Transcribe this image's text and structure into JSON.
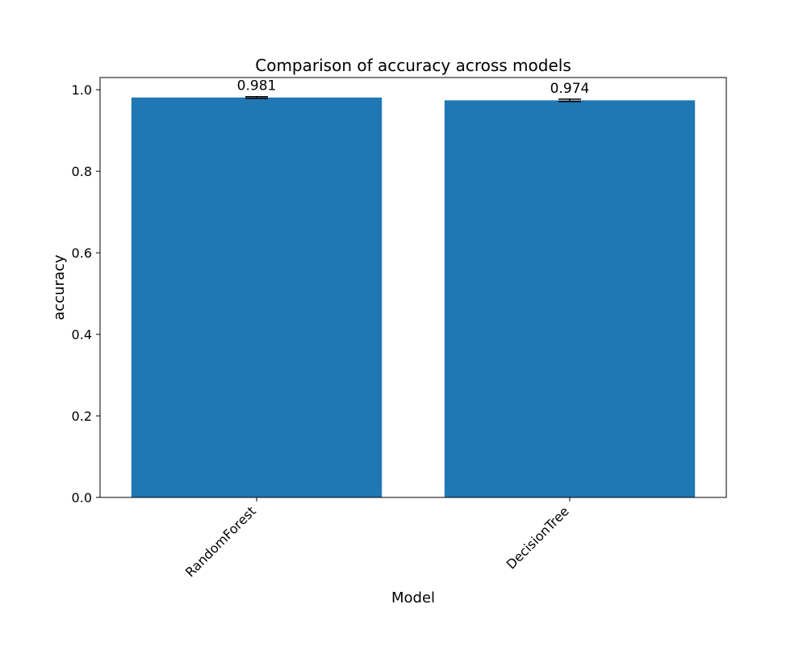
{
  "chart_data": {
    "type": "bar",
    "title": "Comparison of accuracy across models",
    "xlabel": "Model",
    "ylabel": "accuracy",
    "categories": [
      "RandomForest",
      "DecisionTree"
    ],
    "values": [
      0.981,
      0.974
    ],
    "errors": [
      0.002,
      0.003
    ],
    "data_labels": [
      "0.981",
      "0.974"
    ],
    "ylim": [
      0,
      1.03
    ],
    "yticks": [
      0.0,
      0.2,
      0.4,
      0.6,
      0.8,
      1.0
    ],
    "ytick_labels": [
      "0.0",
      "0.2",
      "0.4",
      "0.6",
      "0.8",
      "1.0"
    ],
    "xtick_rotation": "45 degrees",
    "grid": false,
    "legend": "none",
    "colors": {
      "bar": "#1f77b4",
      "errorbar": "#000000",
      "axes": "#000000"
    }
  }
}
